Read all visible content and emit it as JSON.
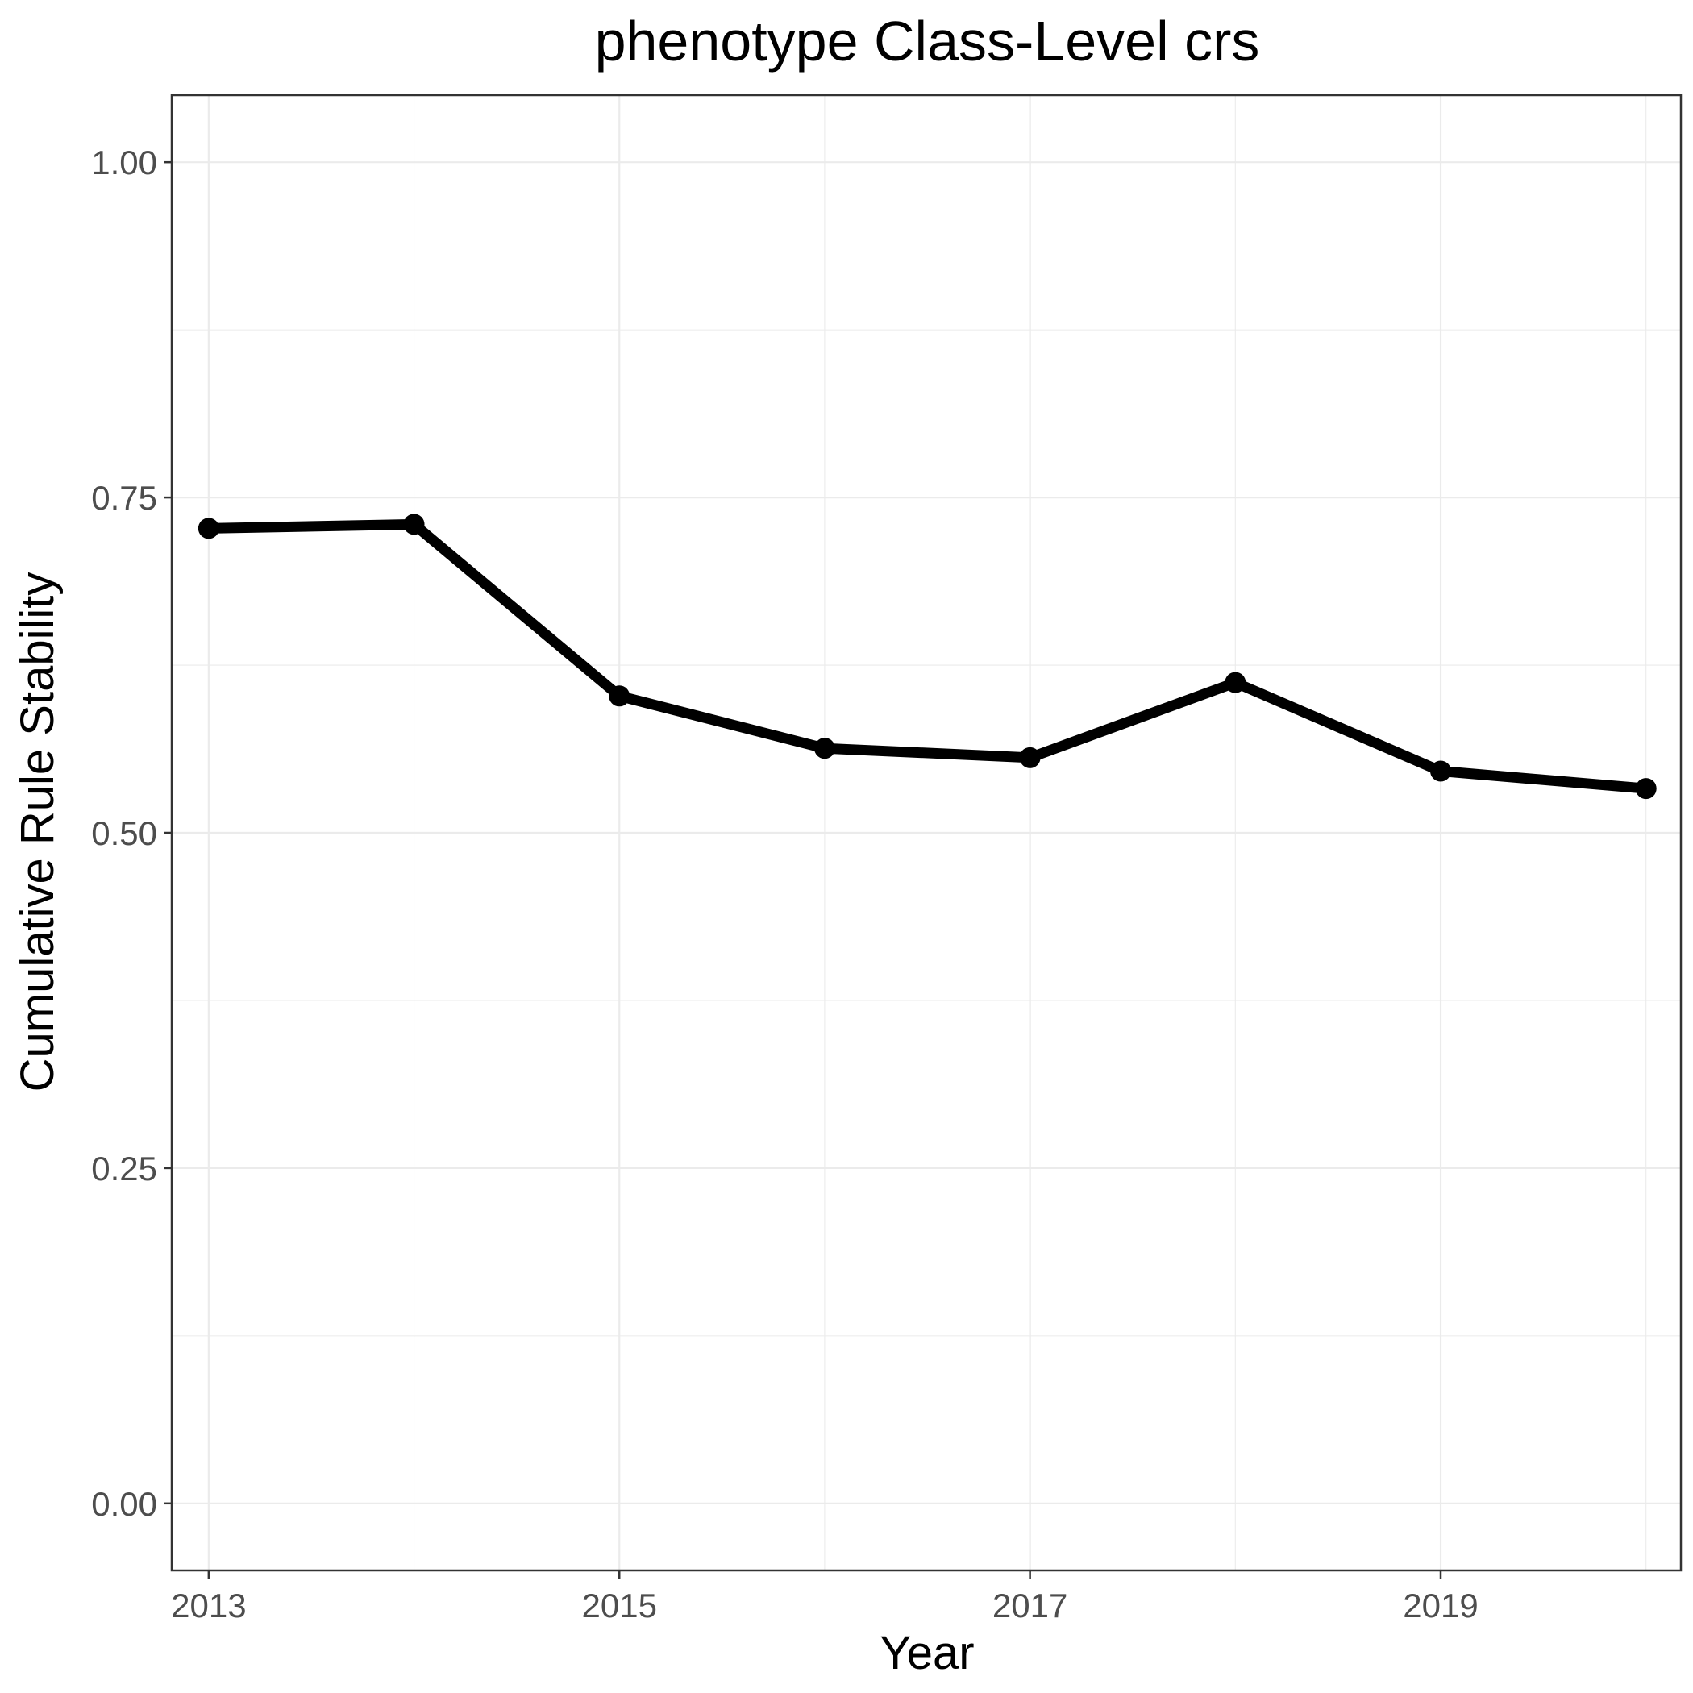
{
  "chart_data": {
    "type": "line",
    "title": "phenotype Class-Level crs",
    "xlabel": "Year",
    "ylabel": "Cumulative Rule Stability",
    "x": [
      2013,
      2014,
      2015,
      2016,
      2017,
      2018,
      2019,
      2020
    ],
    "series": [
      {
        "values": [
          0.727,
          0.73,
          0.602,
          0.563,
          0.556,
          0.612,
          0.546,
          0.533
        ]
      }
    ],
    "xlim": [
      2012.82,
      2020.17
    ],
    "ylim": [
      -0.05,
      1.05
    ],
    "x_ticks": [
      2013,
      2015,
      2017,
      2019
    ],
    "x_tick_labels": [
      "2013",
      "2015",
      "2017",
      "2019"
    ],
    "y_ticks": [
      0,
      0.25,
      0.5,
      0.75,
      1
    ],
    "y_tick_labels": [
      "0.00",
      "0.25",
      "0.50",
      "0.75",
      "1.00"
    ],
    "grid": true,
    "legend": "none",
    "colors": {
      "line": "#000000",
      "grid": "#ebebeb",
      "panel_border": "#333333",
      "tick_text": "#4d4d4d",
      "background": "#ffffff"
    }
  }
}
